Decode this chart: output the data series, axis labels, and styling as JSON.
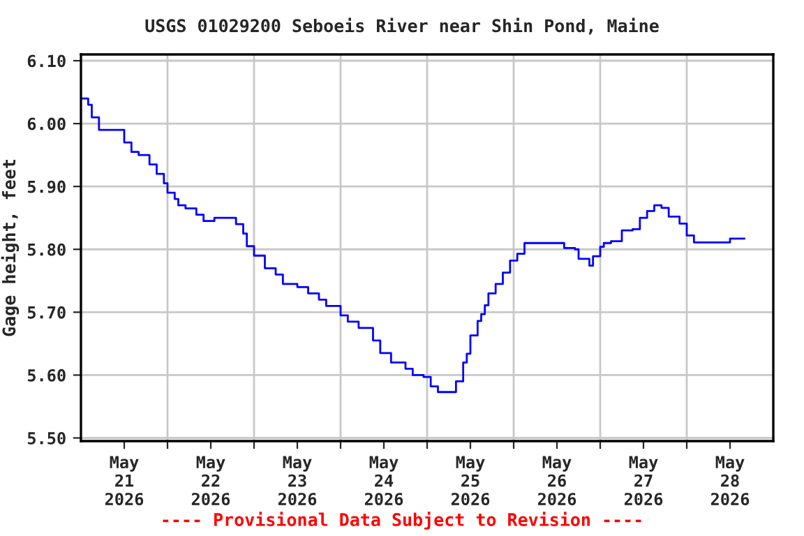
{
  "chart_data": {
    "type": "step",
    "title": "USGS 01029200 Seboeis River near Shin Pond, Maine",
    "ylabel": "Gage height, feet",
    "annotations": [
      "---- Provisional Data Subject to Revision ----"
    ],
    "xlim": [
      "2026-05-21T00:00",
      "2026-05-29T00:00"
    ],
    "xticks": [
      {
        "value": "2026-05-21T12:00",
        "label": "May\n21\n2026"
      },
      {
        "value": "2026-05-22T00:00",
        "label": null
      },
      {
        "value": "2026-05-22T12:00",
        "label": "May\n22\n2026"
      },
      {
        "value": "2026-05-23T00:00",
        "label": null
      },
      {
        "value": "2026-05-23T12:00",
        "label": "May\n23\n2026"
      },
      {
        "value": "2026-05-24T00:00",
        "label": null
      },
      {
        "value": "2026-05-24T12:00",
        "label": "May\n24\n2026"
      },
      {
        "value": "2026-05-25T00:00",
        "label": null
      },
      {
        "value": "2026-05-25T12:00",
        "label": "May\n25\n2026"
      },
      {
        "value": "2026-05-26T00:00",
        "label": null
      },
      {
        "value": "2026-05-26T12:00",
        "label": "May\n26\n2026"
      },
      {
        "value": "2026-05-27T00:00",
        "label": null
      },
      {
        "value": "2026-05-27T12:00",
        "label": "May\n27\n2026"
      },
      {
        "value": "2026-05-28T00:00",
        "label": null
      },
      {
        "value": "2026-05-28T12:00",
        "label": "May\n28\n2026"
      }
    ],
    "ylim": [
      5.495,
      6.11
    ],
    "yticks": [
      {
        "value": 5.5,
        "label": "5.50"
      },
      {
        "value": 5.6,
        "label": "5.60"
      },
      {
        "value": 5.7,
        "label": "5.70"
      },
      {
        "value": 5.8,
        "label": "5.80"
      },
      {
        "value": 5.9,
        "label": "5.90"
      },
      {
        "value": 6.0,
        "label": "6.00"
      },
      {
        "value": 6.1,
        "label": "6.10"
      }
    ],
    "grid": true,
    "legend": false,
    "marker": "none",
    "line_style": "solid",
    "series": [
      {
        "color": "#0000ff",
        "x": [
          "2026-05-21T00:00",
          "2026-05-21T02:00",
          "2026-05-21T03:00",
          "2026-05-21T05:00",
          "2026-05-21T10:00",
          "2026-05-21T12:00",
          "2026-05-21T14:00",
          "2026-05-21T16:00",
          "2026-05-21T19:00",
          "2026-05-21T21:00",
          "2026-05-21T23:00",
          "2026-05-22T00:00",
          "2026-05-22T02:00",
          "2026-05-22T03:00",
          "2026-05-22T05:00",
          "2026-05-22T08:00",
          "2026-05-22T10:00",
          "2026-05-22T13:00",
          "2026-05-22T16:00",
          "2026-05-22T19:00",
          "2026-05-22T21:00",
          "2026-05-22T22:00",
          "2026-05-23T00:00",
          "2026-05-23T03:00",
          "2026-05-23T06:00",
          "2026-05-23T08:00",
          "2026-05-23T12:00",
          "2026-05-23T15:00",
          "2026-05-23T18:00",
          "2026-05-23T20:00",
          "2026-05-24T00:00",
          "2026-05-24T02:00",
          "2026-05-24T05:00",
          "2026-05-24T09:00",
          "2026-05-24T11:00",
          "2026-05-24T14:00",
          "2026-05-24T18:00",
          "2026-05-24T20:00",
          "2026-05-24T23:00",
          "2026-05-25T01:00",
          "2026-05-25T03:00",
          "2026-05-25T07:00",
          "2026-05-25T08:00",
          "2026-05-25T10:00",
          "2026-05-25T11:00",
          "2026-05-25T12:00",
          "2026-05-25T14:00",
          "2026-05-25T15:00",
          "2026-05-25T16:00",
          "2026-05-25T17:00",
          "2026-05-25T19:00",
          "2026-05-25T21:00",
          "2026-05-25T23:00",
          "2026-05-26T01:00",
          "2026-05-26T03:00",
          "2026-05-26T12:00",
          "2026-05-26T14:00",
          "2026-05-26T17:00",
          "2026-05-26T18:00",
          "2026-05-26T21:00",
          "2026-05-26T22:00",
          "2026-05-27T00:00",
          "2026-05-27T01:00",
          "2026-05-27T03:00",
          "2026-05-27T06:00",
          "2026-05-27T09:00",
          "2026-05-27T11:00",
          "2026-05-27T13:00",
          "2026-05-27T15:00",
          "2026-05-27T17:00",
          "2026-05-27T19:00",
          "2026-05-27T22:00",
          "2026-05-28T00:00",
          "2026-05-28T02:00",
          "2026-05-28T07:00",
          "2026-05-28T09:00",
          "2026-05-28T12:00",
          "2026-05-28T16:00"
        ],
        "values": [
          6.04,
          6.03,
          6.01,
          5.99,
          5.99,
          5.97,
          5.955,
          5.95,
          5.935,
          5.92,
          5.905,
          5.89,
          5.88,
          5.87,
          5.865,
          5.855,
          5.845,
          5.85,
          5.85,
          5.84,
          5.825,
          5.805,
          5.79,
          5.77,
          5.76,
          5.745,
          5.74,
          5.73,
          5.72,
          5.71,
          5.695,
          5.685,
          5.675,
          5.655,
          5.635,
          5.62,
          5.61,
          5.6,
          5.597,
          5.582,
          5.573,
          5.573,
          5.59,
          5.62,
          5.634,
          5.663,
          5.686,
          5.697,
          5.711,
          5.73,
          5.745,
          5.763,
          5.782,
          5.793,
          5.81,
          5.81,
          5.802,
          5.8,
          5.785,
          5.774,
          5.789,
          5.804,
          5.81,
          5.813,
          5.83,
          5.832,
          5.85,
          5.861,
          5.87,
          5.866,
          5.852,
          5.841,
          5.822,
          5.811,
          5.811,
          5.811,
          5.817,
          5.817
        ]
      }
    ]
  }
}
